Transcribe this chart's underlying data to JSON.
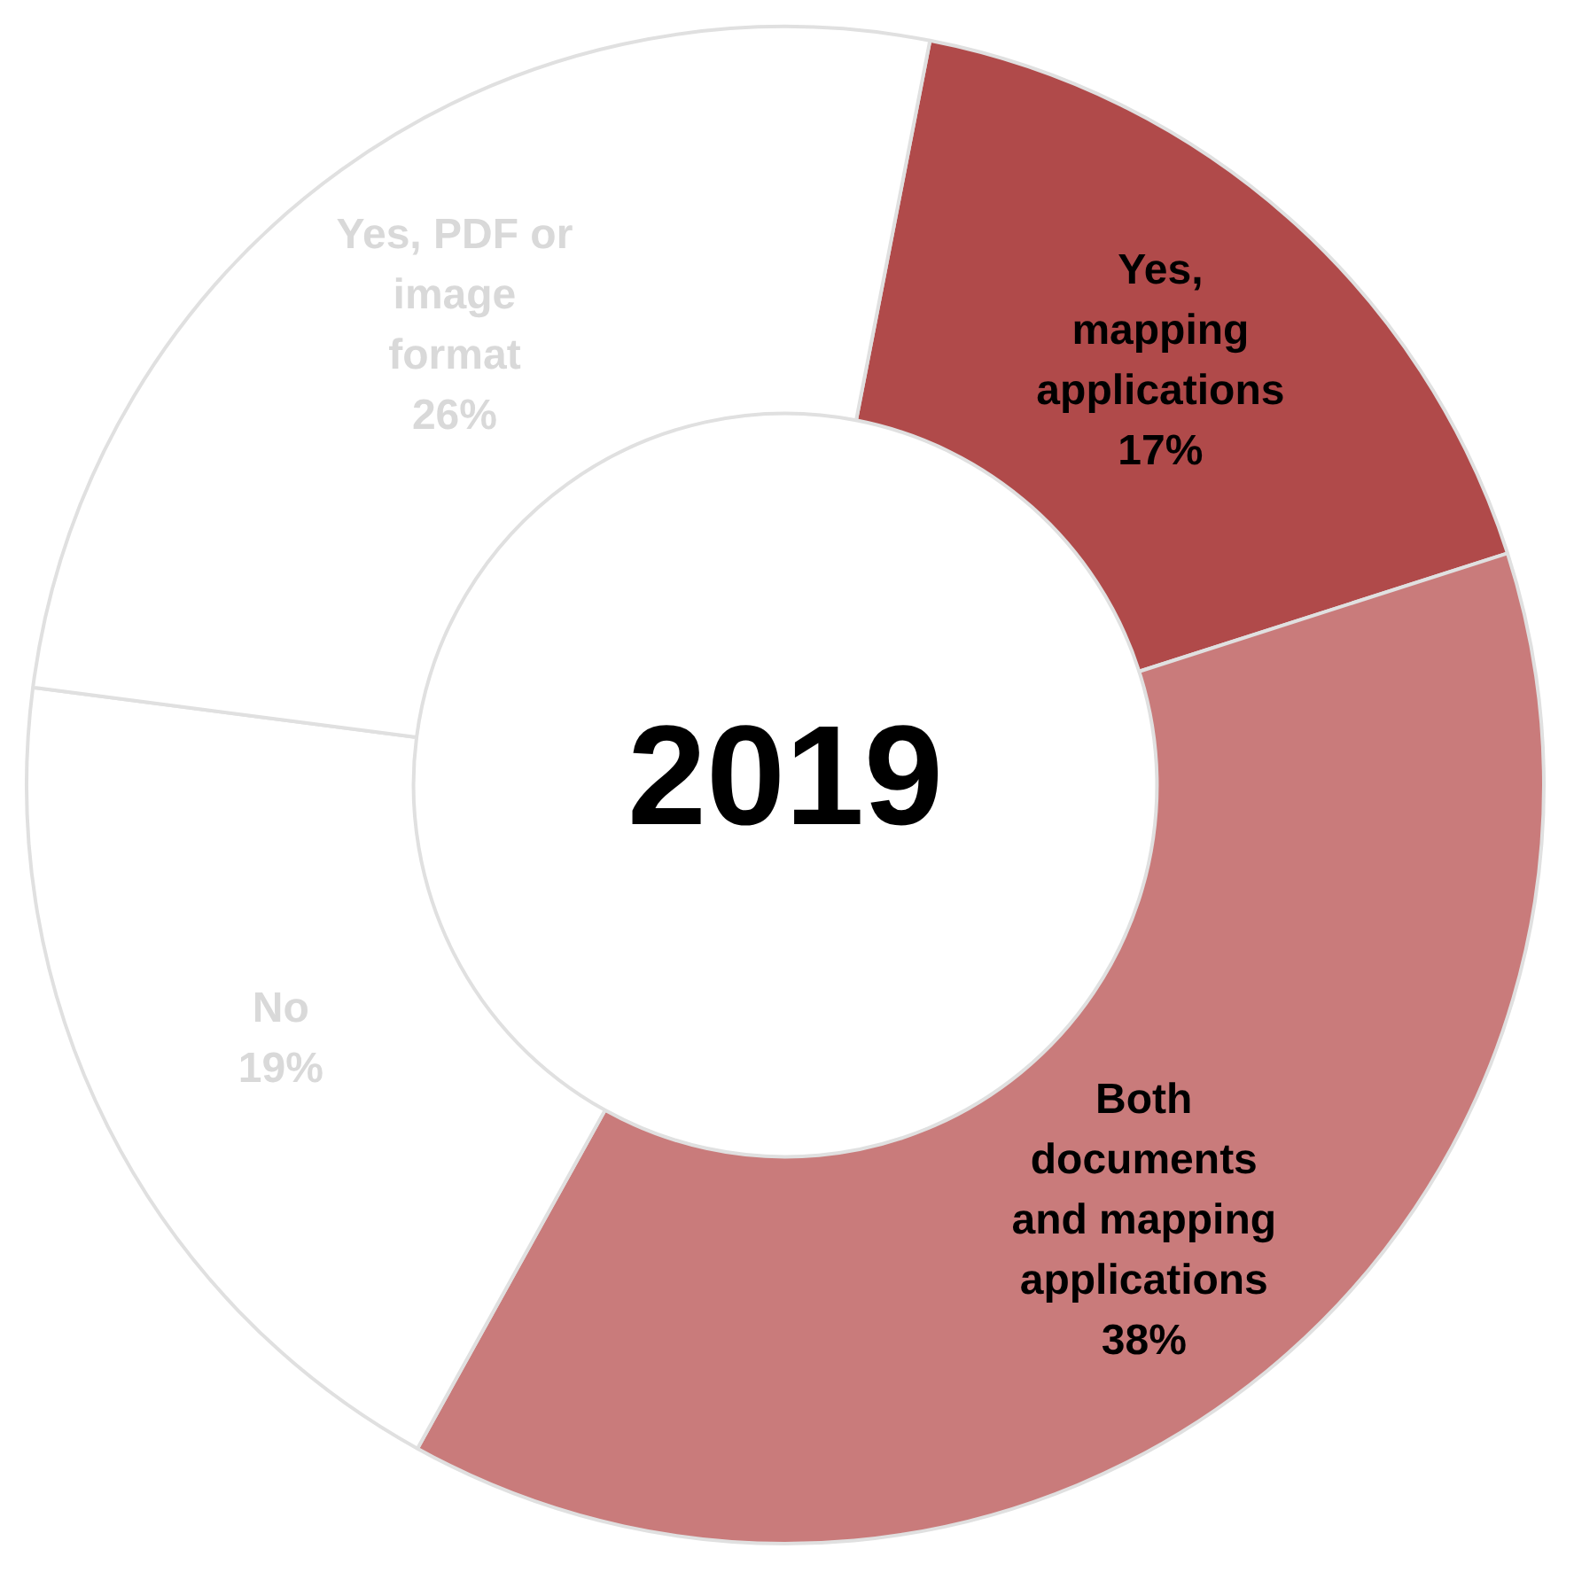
{
  "chart_data": {
    "type": "donut",
    "title": "2019",
    "categories": [
      "Yes, mapping applications",
      "Both documents and mapping applications",
      "No",
      "Yes, PDF or image format"
    ],
    "values": [
      17,
      38,
      19,
      26
    ],
    "value_labels": [
      "17%",
      "38%",
      "19%",
      "26%"
    ],
    "colors": [
      "#b04a4a",
      "#c97b7b",
      "#ffffff",
      "#ffffff"
    ],
    "legend": false
  }
}
